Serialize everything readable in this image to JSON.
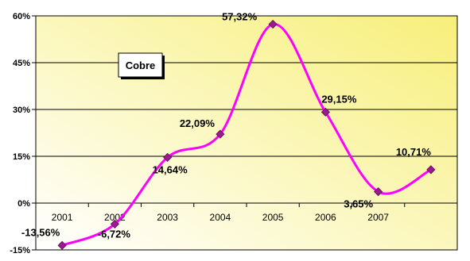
{
  "chart_data": {
    "type": "line",
    "title": "",
    "xlabel": "",
    "ylabel": "",
    "x": [
      "2001",
      "2002",
      "2003",
      "2004",
      "2005",
      "2006",
      "2007",
      ""
    ],
    "series": [
      {
        "name": "Cobre",
        "values": [
          -13.56,
          -6.72,
          14.64,
          22.09,
          57.32,
          29.15,
          3.65,
          10.71
        ],
        "labels": [
          "-13,56%",
          "-6,72%",
          "14,64%",
          "22,09%",
          "57,32%",
          "29,15%",
          "3,65%",
          "10,71%"
        ]
      }
    ],
    "ylim": [
      -15,
      60
    ],
    "yticks": [
      -15,
      0,
      15,
      30,
      45,
      60
    ],
    "ytick_labels": [
      "-15%",
      "0%",
      "15%",
      "30%",
      "45%",
      "60%"
    ],
    "grid": true,
    "legend": "top-left",
    "colors": {
      "line": "#ff00ff",
      "marker": "#9b1b8f",
      "plot_bg_start": "#ffffff",
      "plot_bg_end": "#f7ef7a",
      "grid": "#000000"
    }
  }
}
